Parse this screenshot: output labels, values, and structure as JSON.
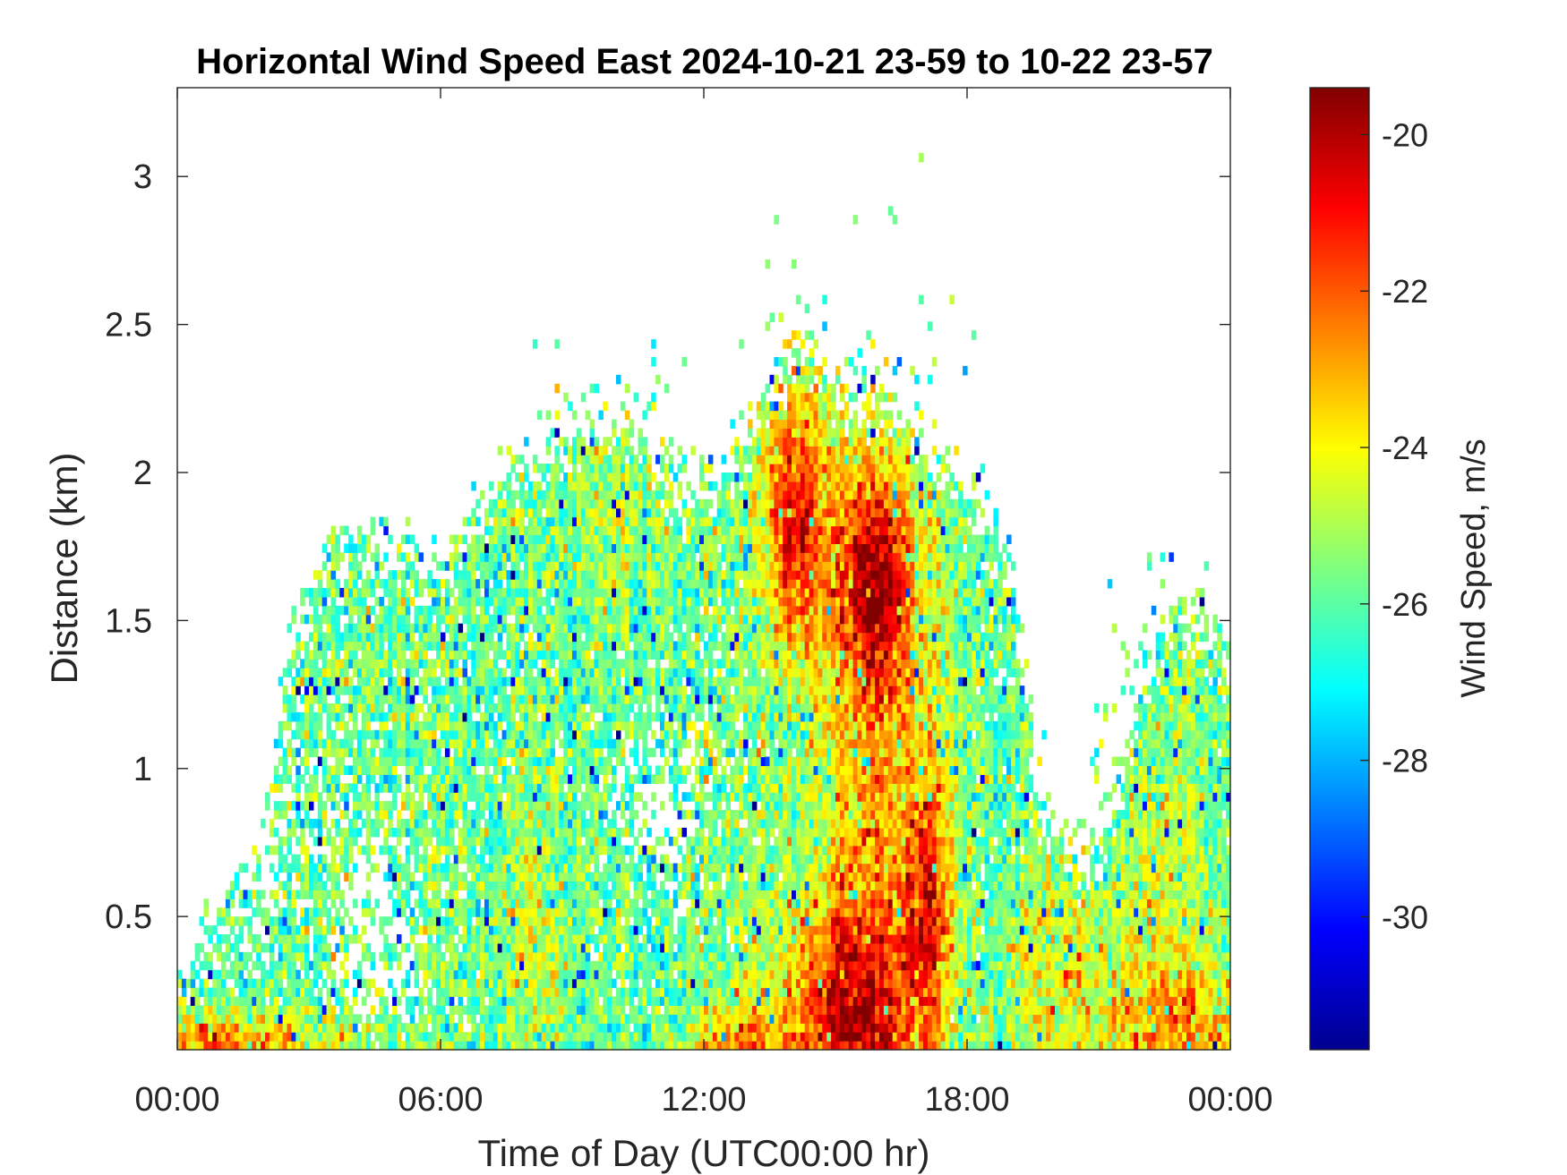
{
  "chart_data": {
    "type": "heatmap",
    "title": "Horizontal Wind Speed East 2024-10-21 23-59 to 10-22 23-57",
    "xlabel": "Time of Day (UTC00:00 hr)",
    "ylabel": "Distance (km)",
    "x_unit": "hours UTC",
    "xlim": [
      0,
      24
    ],
    "ylim": [
      0.05,
      3.3
    ],
    "x_ticks": [
      {
        "value": 0,
        "label": "00:00"
      },
      {
        "value": 6,
        "label": "06:00"
      },
      {
        "value": 12,
        "label": "12:00"
      },
      {
        "value": 18,
        "label": "18:00"
      },
      {
        "value": 24,
        "label": "00:00"
      }
    ],
    "y_ticks": [
      {
        "value": 0.5,
        "label": "0.5"
      },
      {
        "value": 1,
        "label": "1"
      },
      {
        "value": 1.5,
        "label": "1.5"
      },
      {
        "value": 2,
        "label": "2"
      },
      {
        "value": 2.5,
        "label": "2.5"
      },
      {
        "value": 3,
        "label": "3"
      }
    ],
    "colorbar": {
      "label": "Wind Speed, m/s",
      "range": [
        -31.7,
        -19.4
      ],
      "colormap": "jet",
      "ticks": [
        {
          "value": -20,
          "label": "-20"
        },
        {
          "value": -22,
          "label": "-22"
        },
        {
          "value": -24,
          "label": "-24"
        },
        {
          "value": -26,
          "label": "-26"
        },
        {
          "value": -28,
          "label": "-28"
        },
        {
          "value": -30,
          "label": "-30"
        }
      ]
    },
    "grid": false,
    "bins": {
      "time_step_hours": 0.1,
      "range_step_km": 0.03
    },
    "field": {
      "background": -25.8,
      "noise_sd": 1.0,
      "cover": [
        [
          0.0,
          0.35
        ],
        [
          1.0,
          0.65
        ],
        [
          2.0,
          0.9
        ],
        [
          2.5,
          1.5
        ],
        [
          3.5,
          1.85
        ],
        [
          5.0,
          1.8
        ],
        [
          6.0,
          1.75
        ],
        [
          7.5,
          2.1
        ],
        [
          9.0,
          2.15
        ],
        [
          10.5,
          2.1
        ],
        [
          11.5,
          2.0
        ],
        [
          12.5,
          2.1
        ],
        [
          13.5,
          2.3
        ],
        [
          14.3,
          2.5
        ],
        [
          15.0,
          2.35
        ],
        [
          16.0,
          2.3
        ],
        [
          17.0,
          2.15
        ],
        [
          18.0,
          2.05
        ],
        [
          19.0,
          1.8
        ],
        [
          19.6,
          1.0
        ],
        [
          20.5,
          0.65
        ],
        [
          21.5,
          1.0
        ],
        [
          22.0,
          1.25
        ],
        [
          22.5,
          1.55
        ],
        [
          23.0,
          1.6
        ],
        [
          24.0,
          1.45
        ]
      ],
      "cores": [
        {
          "t": 14.1,
          "r": 1.85,
          "st": 0.75,
          "sr": 0.45,
          "v": 4.8
        },
        {
          "t": 15.9,
          "r": 1.65,
          "st": 0.8,
          "sr": 0.35,
          "v": 4.6
        },
        {
          "t": 15.4,
          "r": 0.15,
          "st": 1.6,
          "sr": 0.4,
          "v": 5.2
        },
        {
          "t": 17.1,
          "r": 0.55,
          "st": 0.5,
          "sr": 0.4,
          "v": 3.8
        },
        {
          "t": 16.0,
          "r": 1.1,
          "st": 1.4,
          "sr": 0.9,
          "v": 2.6
        },
        {
          "t": 0.8,
          "r": 0.05,
          "st": 3.0,
          "sr": 0.12,
          "v": 3.6
        },
        {
          "t": 12.8,
          "r": 0.05,
          "st": 1.0,
          "sr": 0.15,
          "v": 3.0
        },
        {
          "t": 22.8,
          "r": 0.1,
          "st": 1.5,
          "sr": 0.25,
          "v": 3.2
        },
        {
          "t": 20.0,
          "r": 0.3,
          "st": 1.2,
          "sr": 0.35,
          "v": 1.8
        },
        {
          "t": 8.2,
          "r": 0.45,
          "st": 0.7,
          "sr": 0.4,
          "v": 1.4
        },
        {
          "t": 10.0,
          "r": 1.9,
          "st": 1.2,
          "sr": 0.35,
          "v": 1.0
        },
        {
          "t": 22.4,
          "r": 0.7,
          "st": 1.0,
          "sr": 0.6,
          "v": 1.2
        }
      ],
      "gaps": [
        {
          "t": 11.0,
          "r": 0.9,
          "st": 0.8,
          "sr": 0.25
        },
        {
          "t": 4.5,
          "r": 0.45,
          "st": 1.0,
          "sr": 0.35
        },
        {
          "t": 1.5,
          "r": 1.0,
          "st": 1.2,
          "sr": 0.6
        }
      ]
    }
  }
}
